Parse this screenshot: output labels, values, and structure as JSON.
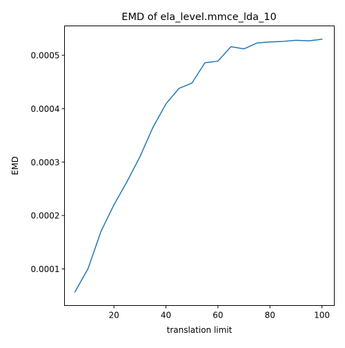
{
  "chart_data": {
    "type": "line",
    "title": "EMD of ela_level.mmce_lda_10",
    "xlabel": "translation limit",
    "ylabel": "EMD",
    "xlim": [
      1,
      104.75
    ],
    "ylim": [
      3.15e-05,
      0.000555
    ],
    "xticks": [
      20,
      40,
      60,
      80,
      100
    ],
    "xtick_labels": [
      "20",
      "40",
      "60",
      "80",
      "100"
    ],
    "yticks": [
      0.0001,
      0.0002,
      0.0003,
      0.0004,
      0.0005
    ],
    "ytick_labels": [
      "0.0001",
      "0.0002",
      "0.0003",
      "0.0004",
      "0.0005"
    ],
    "grid": false,
    "series": [
      {
        "color": "#1f77b4",
        "x": [
          5,
          10,
          15,
          20,
          25,
          30,
          35,
          40,
          45,
          50,
          55,
          60,
          65,
          70,
          75,
          80,
          85,
          90,
          95,
          100
        ],
        "y": [
          5.7e-05,
          0.0001,
          0.00017,
          0.00022,
          0.000263,
          0.00031,
          0.000365,
          0.000409,
          0.000438,
          0.000448,
          0.000486,
          0.000489,
          0.000516,
          0.000512,
          0.000523,
          0.000525,
          0.000526,
          0.000528,
          0.000527,
          0.00053
        ]
      }
    ]
  }
}
